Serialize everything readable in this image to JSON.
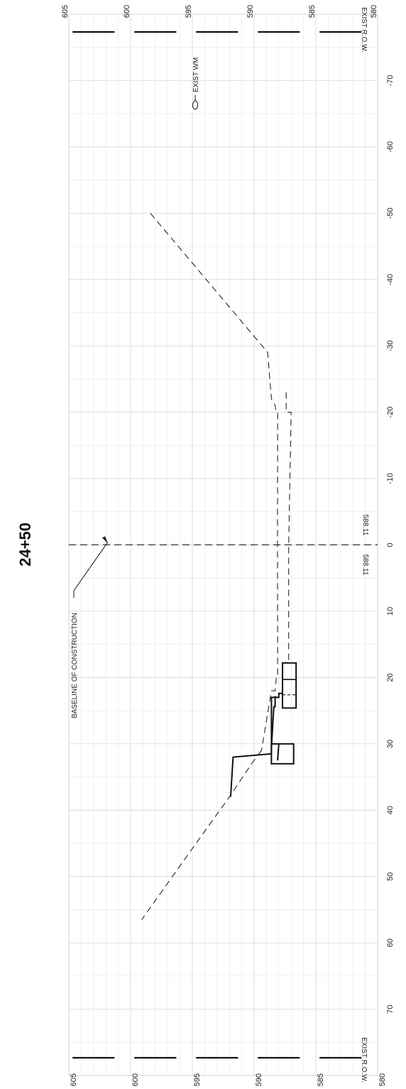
{
  "station": "24+50",
  "chart_data": {
    "type": "line",
    "title": "24+50",
    "xlabel": "",
    "ylabel": "",
    "x_ticks": [
      -70,
      -60,
      -50,
      -40,
      -30,
      -20,
      -10,
      0,
      10,
      20,
      30,
      40,
      50,
      60,
      70
    ],
    "y_ticks": [
      580,
      585,
      590,
      595,
      600,
      605
    ],
    "xlim": [
      -80,
      80
    ],
    "ylim": [
      580,
      605
    ],
    "grid": true,
    "series": [
      {
        "style": "dashed",
        "x": [
          -50,
          -29,
          -22,
          -21,
          -20,
          -20,
          0,
          20,
          20,
          22,
          22,
          31
        ],
        "y": [
          598.4,
          588.9,
          588.6,
          588.3,
          588.2,
          588.1,
          588.11,
          588.1,
          588.2,
          588.3,
          588.6,
          589.4
        ]
      },
      {
        "style": "dashed",
        "x": [
          31,
          33,
          38,
          45,
          56.5
        ],
        "y": [
          589.4,
          590.2,
          592.0,
          594.7,
          599.1
        ]
      },
      {
        "style": "dashed",
        "x": [
          -23,
          -20,
          -20,
          0,
          18
        ],
        "y": [
          587.4,
          587.4,
          587.0,
          587.2,
          587.2
        ]
      },
      {
        "style": "solid",
        "x": [
          38,
          32,
          31.5,
          23,
          23,
          22.4,
          22.4,
          24.6
        ],
        "y": [
          591.9,
          591.7,
          588.6,
          588.6,
          588.0,
          588.0,
          587.7,
          587.7
        ]
      },
      {
        "style": "solid",
        "x": [
          30.6,
          24.4,
          24.4,
          22.8
        ],
        "y": [
          588.6,
          588.4,
          588.3,
          588.3
        ]
      },
      {
        "style": "solid",
        "x": [
          32.5,
          30.0
        ],
        "y": [
          588.1,
          588.0
        ]
      }
    ],
    "structures": [
      {
        "name": "footing-box-right",
        "x": [
          30,
          33
        ],
        "y": [
          586.8,
          588.6
        ]
      },
      {
        "name": "footing-box-left",
        "x": [
          17.8,
          24.6
        ],
        "y": [
          586.6,
          587.7
        ]
      }
    ],
    "annotations": [
      {
        "text": "BASELINE OF CONSTRUCTION",
        "x": 0,
        "y": 601.5
      },
      {
        "text": "EXIST WM",
        "x": 70,
        "y": 595
      },
      {
        "text": "588.11",
        "x": 0,
        "y": 586.8
      },
      {
        "text": "588.11",
        "x": 0,
        "y": 586.8
      },
      {
        "text": "EXIST R.O.W.",
        "x": -80,
        "y": 582.5
      },
      {
        "text": "EXIST R.O.W.",
        "x": 80,
        "y": 582.5
      }
    ]
  }
}
